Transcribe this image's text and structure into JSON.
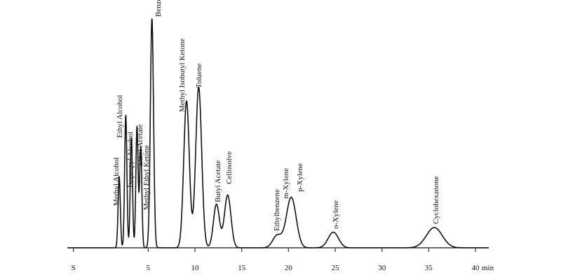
{
  "chart_data": {
    "type": "line",
    "title": "",
    "xlabel": "",
    "ylabel": "",
    "x_unit": "min",
    "xlim": [
      -5,
      42
    ],
    "x_ticks": [
      {
        "value": -3,
        "label": "S"
      },
      {
        "value": 5,
        "label": "5"
      },
      {
        "value": 10,
        "label": "10"
      },
      {
        "value": 15,
        "label": "15"
      },
      {
        "value": 20,
        "label": "20"
      },
      {
        "value": 25,
        "label": "25"
      },
      {
        "value": 30,
        "label": "30"
      },
      {
        "value": 35,
        "label": "35"
      },
      {
        "value": 40,
        "label": "40"
      }
    ],
    "peaks": [
      {
        "name": "Methyl Alcohol",
        "time": 1.9,
        "height": 0.31,
        "width": 0.12
      },
      {
        "name": "Ethyl Alcohol",
        "time": 2.6,
        "height": 0.58,
        "width": 0.12
      },
      {
        "name": "Isopropyl Alcohol",
        "time": 3.2,
        "height": 0.48,
        "width": 0.12
      },
      {
        "name": "Ethyl Acetate",
        "time": 3.8,
        "height": 0.53,
        "width": 0.12
      },
      {
        "name": "Methyl Ethyl Ketone",
        "time": 4.2,
        "height": 0.44,
        "width": 0.12
      },
      {
        "name": "Benzene",
        "time": 5.4,
        "height": 1.0,
        "width": 0.17
      },
      {
        "name": "Methyl Isobutyl Ketone",
        "time": 9.1,
        "height": 0.64,
        "width": 0.3
      },
      {
        "name": "Toluene",
        "time": 10.4,
        "height": 0.7,
        "width": 0.32
      },
      {
        "name": "Butyl Acetate",
        "time": 12.3,
        "height": 0.19,
        "width": 0.32
      },
      {
        "name": "Cellosolve",
        "time": 13.5,
        "height": 0.23,
        "width": 0.35
      },
      {
        "name": "Ethylbenzene",
        "time": 18.8,
        "height": 0.054,
        "width": 0.48
      },
      {
        "name": "m-Xylene",
        "time": 20.3,
        "height": 0.22,
        "width": 0.52
      },
      {
        "name": "p-Xylene",
        "time": 20.6,
        "height": 0.0,
        "width": 0.5
      },
      {
        "name": "o-Xylene",
        "time": 24.8,
        "height": 0.068,
        "width": 0.55
      },
      {
        "name": "Cyclohexanone",
        "time": 35.6,
        "height": 0.088,
        "width": 0.85
      }
    ]
  }
}
